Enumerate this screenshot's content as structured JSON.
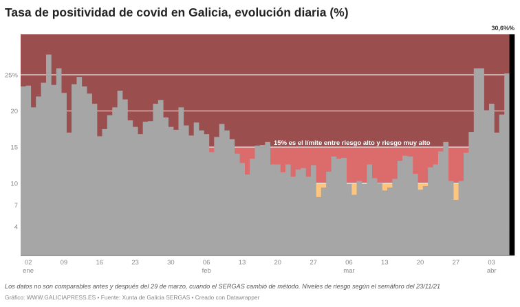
{
  "chart_data": {
    "type": "bar",
    "title": "Tasa de positividad de covid en Galicia, evolución diaria (%)",
    "start_date": "2022-01-01",
    "x_tick_labels": [
      {
        "date": "2022-01-02",
        "label": "02",
        "sub": "ene"
      },
      {
        "date": "2022-01-09",
        "label": "09",
        "sub": ""
      },
      {
        "date": "2022-01-16",
        "label": "16",
        "sub": ""
      },
      {
        "date": "2022-01-23",
        "label": "23",
        "sub": ""
      },
      {
        "date": "2022-01-30",
        "label": "30",
        "sub": ""
      },
      {
        "date": "2022-02-06",
        "label": "06",
        "sub": "feb"
      },
      {
        "date": "2022-02-13",
        "label": "13",
        "sub": ""
      },
      {
        "date": "2022-02-20",
        "label": "20",
        "sub": ""
      },
      {
        "date": "2022-02-27",
        "label": "27",
        "sub": ""
      },
      {
        "date": "2022-03-06",
        "label": "06",
        "sub": "mar"
      },
      {
        "date": "2022-03-13",
        "label": "13",
        "sub": ""
      },
      {
        "date": "2022-03-20",
        "label": "20",
        "sub": ""
      },
      {
        "date": "2022-03-27",
        "label": "27",
        "sub": ""
      },
      {
        "date": "2022-04-03",
        "label": "03",
        "sub": "abr"
      }
    ],
    "y_ticks": [
      {
        "v": 4,
        "label": "4"
      },
      {
        "v": 7,
        "label": "7"
      },
      {
        "v": 10,
        "label": "10"
      },
      {
        "v": 15,
        "label": "15"
      },
      {
        "v": 20,
        "label": "20"
      },
      {
        "v": 25,
        "label": "25%"
      }
    ],
    "ylim": [
      0,
      30.6
    ],
    "grid": true,
    "values": [
      23.4,
      23.5,
      20.5,
      22.0,
      23.9,
      27.8,
      23.6,
      25.9,
      22.5,
      17.0,
      23.7,
      24.7,
      23.4,
      22.4,
      21.0,
      16.5,
      17.5,
      19.4,
      20.5,
      22.8,
      21.6,
      18.7,
      17.8,
      16.8,
      18.5,
      18.6,
      21.0,
      21.5,
      19.1,
      17.8,
      17.4,
      20.5,
      18.0,
      16.6,
      18.4,
      17.3,
      16.8,
      14.3,
      16.4,
      18.2,
      17.3,
      16.1,
      14.1,
      12.8,
      11.2,
      13.4,
      15.2,
      15.3,
      15.7,
      12.6,
      12.6,
      11.5,
      12.6,
      10.9,
      11.9,
      12.1,
      10.9,
      12.5,
      8.1,
      9.4,
      11.6,
      13.7,
      13.4,
      13.5,
      9.9,
      8.4,
      10.3,
      9.9,
      12.6,
      10.7,
      10.0,
      9.0,
      9.4,
      10.6,
      13.1,
      13.8,
      13.7,
      11.3,
      9.1,
      9.6,
      12.2,
      12.6,
      14.4,
      15.7,
      10.3,
      7.7,
      10.3,
      14.2,
      17.1,
      25.9,
      25.9,
      20.1,
      21.0,
      17.0,
      19.5,
      25.2,
      30.6
    ],
    "last_value_label": "30,6%%",
    "bar_color": "#a6a6a6",
    "last_bar_color": "#000000",
    "risk_zones": [
      {
        "from": 0,
        "to": 4,
        "color": "#80cdc1"
      },
      {
        "from": 4,
        "to": 7,
        "color": "#d6c84a"
      },
      {
        "from": 7,
        "to": 10,
        "color": "#fec57e"
      },
      {
        "from": 10,
        "to": 15,
        "color": "#dc6b6b"
      },
      {
        "from": 15,
        "to": 30.6,
        "color": "#9b4e4e"
      }
    ],
    "annotation": {
      "text": "15% es el límite entre riesgo alto y riesgo muy alto",
      "y": 15
    }
  },
  "notes": "Los datos no son comparables antes y después del 29 de marzo, cuando el SERGAS cambió de método. Niveles de riesgo según el semáforo del 23/11/21",
  "credits": "Gráfico: WWW.GALICIAPRESS.ES • Fuente: Xunta de Galicia SERGAS • Creado con Datawrapper"
}
